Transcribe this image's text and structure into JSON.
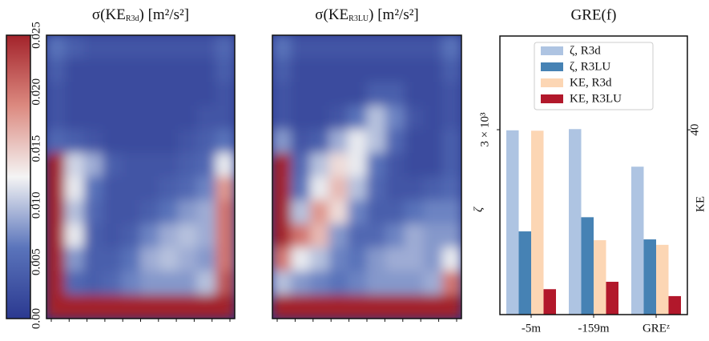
{
  "chart_data": [
    {
      "type": "heatmap",
      "title": "σ(KE",
      "title_sub": "R3d",
      "title_end": ") [m²/s²]",
      "zlim": [
        0,
        0.025
      ],
      "zticks": [
        {
          "value": 0,
          "label": "0.00"
        },
        0.005,
        {
          "value": 0.01,
          "label": "0.010"
        },
        0.015,
        {
          "value": 0.02,
          "label": "0.020"
        },
        0.025
      ],
      "colors": [
        "#2b3990",
        "#5a74bb",
        "#f4f4f4",
        "#dc8a80",
        "#a3232b"
      ],
      "z": [
        [
          0.006,
          0.004,
          0.003,
          0.003,
          0.003,
          0.003,
          0.003,
          0.003,
          0.003,
          0.005
        ],
        [
          0.004,
          0.002,
          0.002,
          0.002,
          0.002,
          0.002,
          0.002,
          0.002,
          0.002,
          0.004
        ],
        [
          0.003,
          0.002,
          0.002,
          0.002,
          0.002,
          0.002,
          0.002,
          0.002,
          0.002,
          0.003
        ],
        [
          0.003,
          0.002,
          0.002,
          0.002,
          0.002,
          0.002,
          0.002,
          0.002,
          0.003,
          0.003
        ],
        [
          0.005,
          0.004,
          0.003,
          0.002,
          0.002,
          0.002,
          0.002,
          0.003,
          0.004,
          0.006
        ],
        [
          0.025,
          0.011,
          0.009,
          0.004,
          0.003,
          0.003,
          0.003,
          0.004,
          0.005,
          0.012
        ],
        [
          0.025,
          0.012,
          0.006,
          0.003,
          0.003,
          0.003,
          0.004,
          0.005,
          0.007,
          0.018
        ],
        [
          0.025,
          0.01,
          0.005,
          0.003,
          0.003,
          0.004,
          0.006,
          0.008,
          0.009,
          0.02
        ],
        [
          0.025,
          0.012,
          0.004,
          0.003,
          0.004,
          0.007,
          0.009,
          0.01,
          0.009,
          0.02
        ],
        [
          0.025,
          0.008,
          0.004,
          0.004,
          0.006,
          0.009,
          0.01,
          0.009,
          0.008,
          0.02
        ],
        [
          0.025,
          0.005,
          0.004,
          0.005,
          0.007,
          0.008,
          0.008,
          0.008,
          0.01,
          0.022
        ],
        [
          0.025,
          0.025,
          0.025,
          0.025,
          0.025,
          0.025,
          0.025,
          0.025,
          0.025,
          0.025
        ]
      ]
    },
    {
      "type": "heatmap",
      "title": "σ(KE",
      "title_sub": "R3LU",
      "title_end": ") [m²/s²]",
      "zlim": [
        0,
        0.025
      ],
      "colors": [
        "#2b3990",
        "#5a74bb",
        "#f4f4f4",
        "#dc8a80",
        "#a3232b"
      ],
      "z": [
        [
          0.006,
          0.003,
          0.003,
          0.003,
          0.003,
          0.003,
          0.003,
          0.003,
          0.003,
          0.006
        ],
        [
          0.004,
          0.002,
          0.002,
          0.002,
          0.002,
          0.002,
          0.002,
          0.002,
          0.002,
          0.004
        ],
        [
          0.003,
          0.002,
          0.002,
          0.002,
          0.002,
          0.004,
          0.004,
          0.002,
          0.002,
          0.003
        ],
        [
          0.003,
          0.002,
          0.002,
          0.003,
          0.006,
          0.01,
          0.007,
          0.003,
          0.002,
          0.003
        ],
        [
          0.008,
          0.003,
          0.004,
          0.009,
          0.012,
          0.01,
          0.005,
          0.002,
          0.002,
          0.004
        ],
        [
          0.025,
          0.005,
          0.01,
          0.014,
          0.012,
          0.006,
          0.003,
          0.002,
          0.002,
          0.004
        ],
        [
          0.025,
          0.006,
          0.012,
          0.016,
          0.01,
          0.005,
          0.003,
          0.003,
          0.004,
          0.005
        ],
        [
          0.025,
          0.01,
          0.018,
          0.014,
          0.007,
          0.004,
          0.004,
          0.006,
          0.007,
          0.007
        ],
        [
          0.025,
          0.02,
          0.016,
          0.008,
          0.005,
          0.005,
          0.007,
          0.009,
          0.008,
          0.008
        ],
        [
          0.02,
          0.012,
          0.01,
          0.007,
          0.006,
          0.008,
          0.009,
          0.009,
          0.008,
          0.012
        ],
        [
          0.01,
          0.008,
          0.007,
          0.006,
          0.007,
          0.008,
          0.008,
          0.008,
          0.009,
          0.02
        ],
        [
          0.025,
          0.025,
          0.025,
          0.025,
          0.025,
          0.025,
          0.025,
          0.025,
          0.025,
          0.025
        ]
      ]
    },
    {
      "type": "bar",
      "title": "GRE(f)",
      "categories": [
        "-5m",
        "-159m",
        "GREᶻ"
      ],
      "y_label": "ζ",
      "y2_label": "KE",
      "ylim": [
        0,
        4520
      ],
      "yticks": [
        {
          "value": 3000,
          "label": "3 × 10³"
        }
      ],
      "y2lim": [
        0,
        60.3
      ],
      "y2ticks": [
        40
      ],
      "legend": "upper center",
      "series": [
        {
          "name": "ζ, R3d",
          "color": "#aec4e2",
          "values": [
            2990,
            3010,
            2400
          ]
        },
        {
          "name": "ζ, R3LU",
          "color": "#4682b4",
          "values": [
            1350,
            1580,
            1220
          ]
        },
        {
          "name": "KE, R3d",
          "color": "#fcd6b4",
          "axis": "y2",
          "values": [
            39.8,
            16.1,
            15.1
          ]
        },
        {
          "name": "KE, R3LU",
          "color": "#b2182b",
          "axis": "y2",
          "values": [
            5.5,
            7.1,
            4.0
          ]
        }
      ]
    }
  ]
}
